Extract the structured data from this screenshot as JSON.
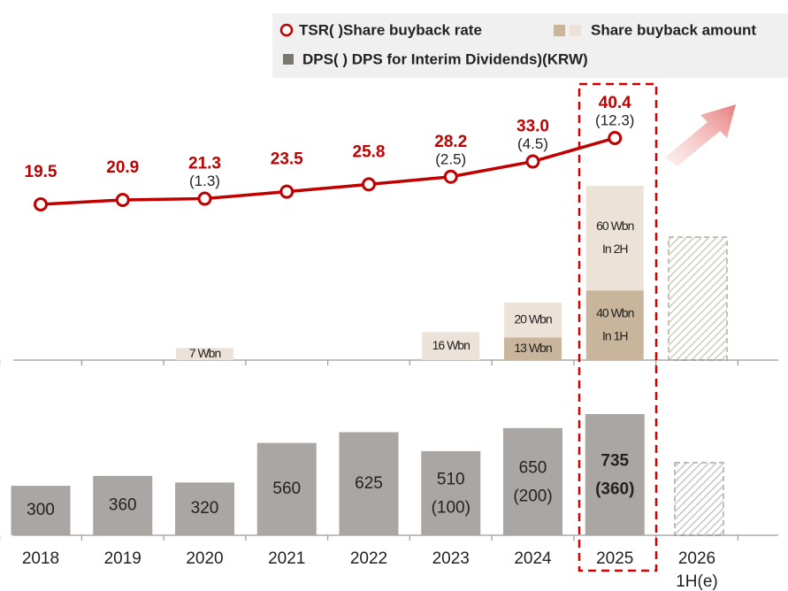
{
  "chart_data": {
    "type": "combo",
    "categories": [
      "2018",
      "2019",
      "2020",
      "2021",
      "2022",
      "2023",
      "2024",
      "2025",
      [
        "2026",
        "1H(e)"
      ]
    ],
    "series": [
      {
        "type": "line",
        "name": "TSR( )Share buyback rate",
        "color": "#c00000",
        "values": [
          19.5,
          20.9,
          21.3,
          23.5,
          25.8,
          28.2,
          33.0,
          40.4,
          null
        ],
        "value_labels": [
          "19.5",
          "20.9",
          "21.3",
          "23.5",
          "25.8",
          "28.2",
          "33.0",
          "40.4",
          null
        ],
        "sub_values": [
          null,
          null,
          1.3,
          null,
          null,
          2.5,
          4.5,
          12.3,
          null
        ],
        "sub_labels": [
          null,
          null,
          "(1.3)",
          null,
          null,
          "(2.5)",
          "(4.5)",
          "(12.3)",
          null
        ]
      },
      {
        "type": "bar",
        "name": "Share buyback amount",
        "color": "#c8b59c",
        "stack": "buyback",
        "values": [
          null,
          null,
          null,
          null,
          null,
          null,
          13,
          40,
          null
        ],
        "value_labels": [
          null,
          null,
          null,
          null,
          null,
          null,
          [
            "13 Wbn"
          ],
          [
            "40 Wbn",
            "In 1H"
          ],
          null
        ]
      },
      {
        "type": "bar",
        "color": "#ede2d8",
        "stack": "buyback",
        "values": [
          null,
          null,
          7,
          null,
          null,
          16,
          20,
          60,
          null
        ],
        "value_labels": [
          null,
          null,
          [
            "7 Wbn"
          ],
          null,
          null,
          [
            "16 Wbn"
          ],
          [
            "20 Wbn"
          ],
          [
            "60 Wbn",
            "In 2H"
          ],
          null
        ]
      },
      {
        "type": "bar",
        "name": "DPS( ) DPS for Interim Dividends)(KRW)",
        "color": "#aaa6a3",
        "stack": "dps",
        "values": [
          300,
          360,
          320,
          560,
          625,
          510,
          650,
          735,
          null
        ],
        "sub_values": [
          null,
          null,
          null,
          null,
          null,
          100,
          200,
          360,
          null
        ],
        "sub_labels": [
          null,
          null,
          null,
          null,
          null,
          "(100)",
          "(200)",
          "(360)",
          null
        ]
      }
    ]
  }
}
